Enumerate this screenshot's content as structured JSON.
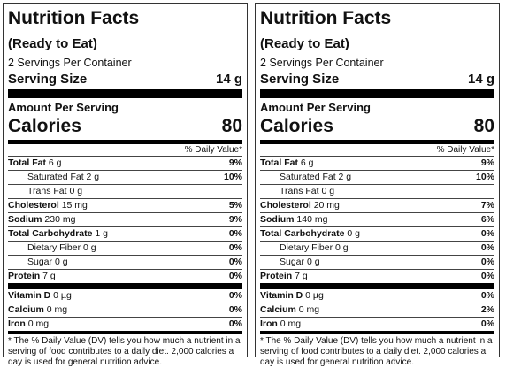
{
  "labels": [
    {
      "title": "Nutrition Facts",
      "subtitle": "(Ready to Eat)",
      "servings_per_container": "2 Servings Per Container",
      "serving_size_label": "Serving Size",
      "serving_size_value": "14 g",
      "amount_per_serving": "Amount Per Serving",
      "calories_label": "Calories",
      "calories_value": "80",
      "daily_value_header": "% Daily Value*",
      "nutrients": [
        {
          "name": "Total Fat",
          "amount": "6 g",
          "dv": "9%"
        },
        {
          "name": "Saturated Fat",
          "amount": "2 g",
          "dv": "10%"
        },
        {
          "name": "Trans Fat",
          "amount": "0 g",
          "dv": ""
        },
        {
          "name": "Cholesterol",
          "amount": "15 mg",
          "dv": "5%"
        },
        {
          "name": "Sodium",
          "amount": "230 mg",
          "dv": "9%"
        },
        {
          "name": "Total Carbohydrate",
          "amount": "1 g",
          "dv": "0%"
        },
        {
          "name": "Dietary Fiber",
          "amount": "0 g",
          "dv": "0%"
        },
        {
          "name": "Sugar",
          "amount": "0 g",
          "dv": "0%"
        },
        {
          "name": "Protein",
          "amount": "7 g",
          "dv": "0%"
        }
      ],
      "vitamins": [
        {
          "name": "Vitamin D",
          "amount": "0 µg",
          "dv": "0%"
        },
        {
          "name": "Calcium",
          "amount": "0 mg",
          "dv": "0%"
        },
        {
          "name": "Iron",
          "amount": "0 mg",
          "dv": "0%"
        }
      ],
      "footnote": "* The % Daily Value (DV) tells you how much a nutrient in a serving of food contributes to a daily diet. 2,000 calories a day is used for general nutrition advice."
    },
    {
      "title": "Nutrition Facts",
      "subtitle": "(Ready to Eat)",
      "servings_per_container": "2 Servings Per Container",
      "serving_size_label": "Serving Size",
      "serving_size_value": "14 g",
      "amount_per_serving": "Amount Per Serving",
      "calories_label": "Calories",
      "calories_value": "80",
      "daily_value_header": "% Daily Value*",
      "nutrients": [
        {
          "name": "Total Fat",
          "amount": "6 g",
          "dv": "9%"
        },
        {
          "name": "Saturated Fat",
          "amount": "2 g",
          "dv": "10%"
        },
        {
          "name": "Trans Fat",
          "amount": "0 g",
          "dv": ""
        },
        {
          "name": "Cholesterol",
          "amount": "20 mg",
          "dv": "7%"
        },
        {
          "name": "Sodium",
          "amount": "140 mg",
          "dv": "6%"
        },
        {
          "name": "Total Carbohydrate",
          "amount": "0 g",
          "dv": "0%"
        },
        {
          "name": "Dietary Fiber",
          "amount": "0 g",
          "dv": "0%"
        },
        {
          "name": "Sugar",
          "amount": "0 g",
          "dv": "0%"
        },
        {
          "name": "Protein",
          "amount": "7 g",
          "dv": "0%"
        }
      ],
      "vitamins": [
        {
          "name": "Vitamin D",
          "amount": "0 µg",
          "dv": "0%"
        },
        {
          "name": "Calcium",
          "amount": "0 mg",
          "dv": "2%"
        },
        {
          "name": "Iron",
          "amount": "0 mg",
          "dv": "0%"
        }
      ],
      "footnote": "* The % Daily Value (DV) tells you how much a nutrient in a serving of food contributes to a daily diet. 2,000 calories a day is used for general nutrition advice."
    }
  ]
}
